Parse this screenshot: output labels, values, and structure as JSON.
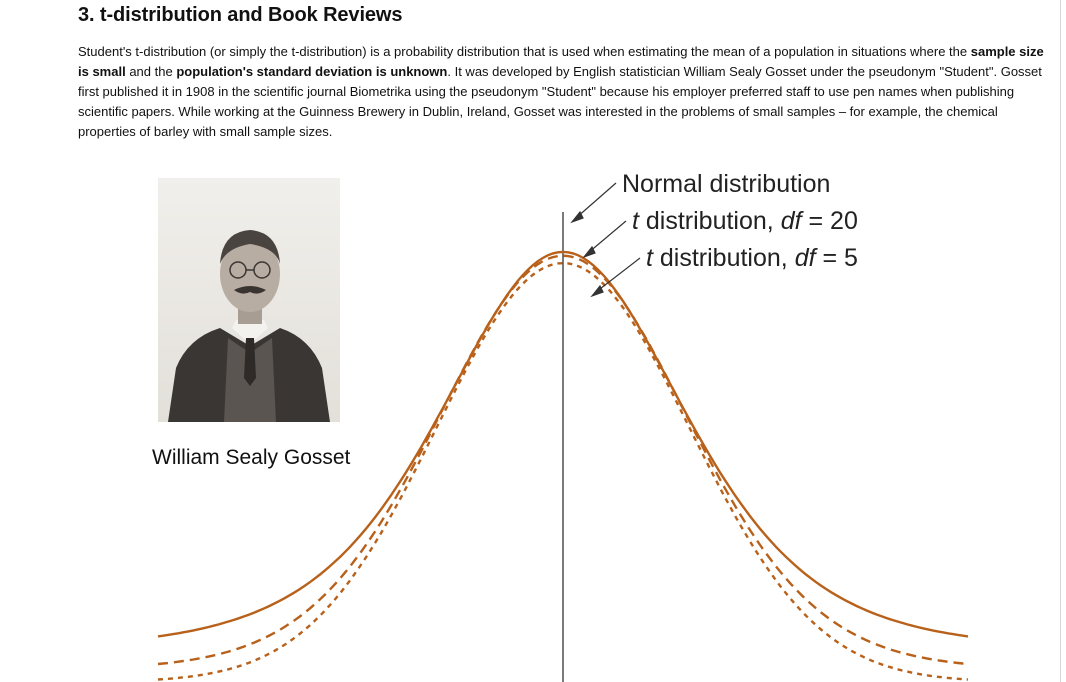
{
  "section": {
    "title": "3. t-distribution and Book Reviews"
  },
  "intro": {
    "p1": "Student's t-distribution (or simply the t-distribution) is a probability distribution that is used when estimating the mean of a population in situations where the ",
    "bold1": "sample size is small",
    "p2": " and the ",
    "bold2": "population's standard deviation is unknown",
    "p3": ". It was developed by English statistician William Sealy Gosset under the pseudonym \"Student\". Gosset first published it in 1908 in the scientific journal Biometrika using the pseudonym \"Student\" because his employer preferred staff to use pen names when publishing scientific papers. While working at the Guinness Brewery in Dublin, Ireland, Gosset was interested in the problems of small samples – for example, the chemical properties of barley with small sample sizes."
  },
  "figure": {
    "portrait_caption": "William Sealy Gosset",
    "curve_color": "#b8611b",
    "labels": {
      "normal": "Normal distribution",
      "t20_prefix": "t",
      "t20_mid": " distribution, ",
      "t20_df": "df",
      "t20_eq": " = 20",
      "t5_prefix": "t",
      "t5_mid": " distribution, ",
      "t5_df": "df",
      "t5_eq": " = 5"
    }
  }
}
